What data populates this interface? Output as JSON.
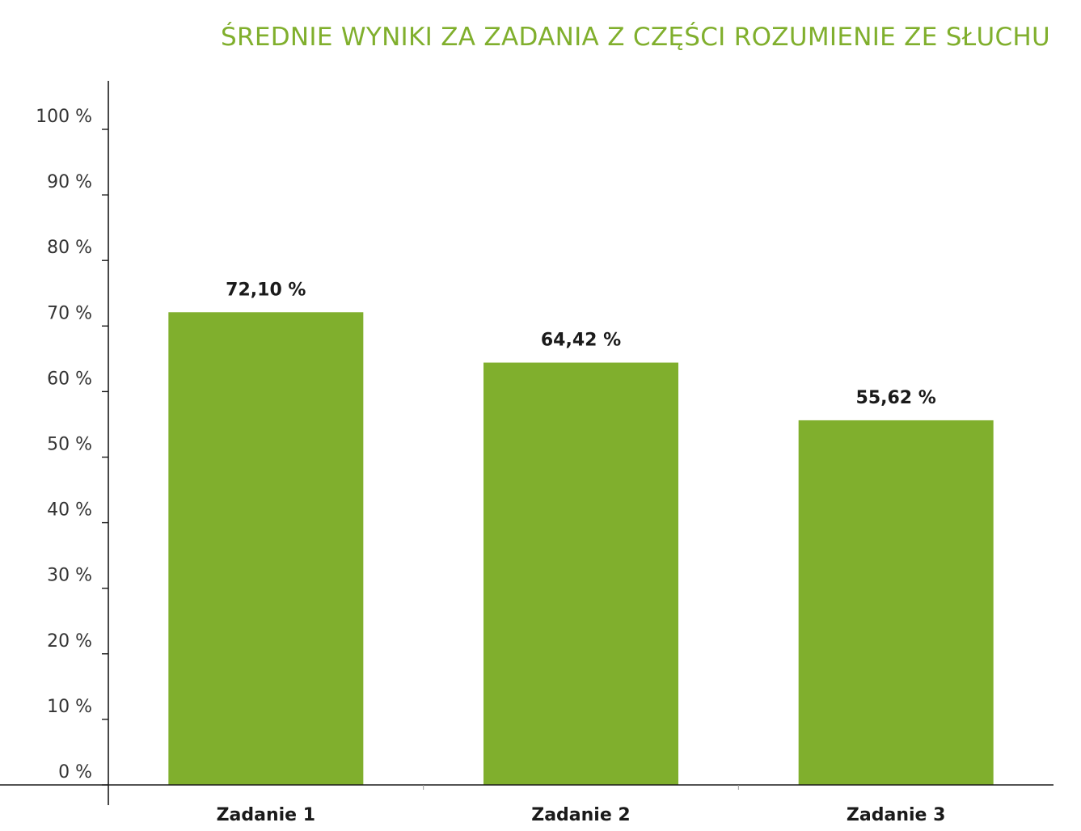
{
  "chart_data": {
    "type": "bar",
    "title": "ŚREDNIE WYNIKI ZA ZADANIA Z CZĘŚCI ROZUMIENIE ZE SŁUCHU",
    "categories": [
      "Zadanie 1",
      "Zadanie 2",
      "Zadanie 3"
    ],
    "values": [
      72.1,
      64.42,
      55.62
    ],
    "value_labels": [
      "72,10 %",
      "64,42 %",
      "55,62 %"
    ],
    "xlabel": "",
    "ylabel": "",
    "ylim": [
      0,
      100
    ],
    "yticks": [
      0,
      10,
      20,
      30,
      40,
      50,
      60,
      70,
      80,
      90,
      100
    ],
    "ytick_labels": [
      "0 %",
      "10 %",
      "20 %",
      "30 %",
      "40 %",
      "50 %",
      "60 %",
      "70 %",
      "80 %",
      "90 %",
      "100 %"
    ],
    "grid": false,
    "legend": "none",
    "colors": {
      "bar": "#80af2d",
      "title": "#80af2d",
      "axis": "#1a1a1a"
    }
  }
}
